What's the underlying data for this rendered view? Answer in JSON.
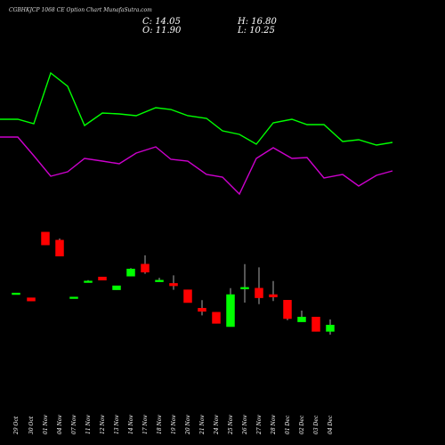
{
  "header": {
    "title": "CGBHKJCP 1068  CE Option  Chart MunafaSutra.com",
    "c_label": "C: 14.05",
    "h_label": "H: 16.80",
    "o_label": "O: 11.90",
    "l_label": "L: 10.25"
  },
  "colors": {
    "up": "#00ff00",
    "down": "#ff0000",
    "ma_fast": "#00ff00",
    "ma_slow": "#cc00cc",
    "background": "#000000"
  },
  "chart_data": {
    "type": "candlestick",
    "price_axis": {
      "note": "values estimated in chart price units",
      "min": 0,
      "max": 100
    },
    "candles": [
      {
        "date": "29 Oct",
        "open": 56.0,
        "high": 56.0,
        "low": 56.0,
        "close": 56.0
      },
      {
        "date": "30 Oct",
        "open": 53.0,
        "high": 53.0,
        "low": 51.0,
        "close": 51.0
      },
      {
        "date": "01 Nov",
        "open": 94.0,
        "high": 94.0,
        "low": 86.0,
        "close": 86.0
      },
      {
        "date": "04 Nov",
        "open": 89.0,
        "high": 90.0,
        "low": 79.0,
        "close": 79.0
      },
      {
        "date": "07 Nov",
        "open": 53.5,
        "high": 53.5,
        "low": 53.5,
        "close": 53.5
      },
      {
        "date": "11 Nov",
        "open": 63.5,
        "high": 64.0,
        "low": 63.5,
        "close": 63.5
      },
      {
        "date": "12 Nov",
        "open": 66.0,
        "high": 66.0,
        "low": 64.0,
        "close": 64.0
      },
      {
        "date": "13 Nov",
        "open": 58.0,
        "high": 60.5,
        "low": 58.0,
        "close": 60.5
      },
      {
        "date": "14 Nov",
        "open": 66.5,
        "high": 71.5,
        "low": 66.5,
        "close": 71.0
      },
      {
        "date": "17 Nov",
        "open": 74.0,
        "high": 79.5,
        "low": 68.0,
        "close": 69.0
      },
      {
        "date": "18 Nov",
        "open": 63.5,
        "high": 65.5,
        "low": 63.5,
        "close": 64.0
      },
      {
        "date": "19 Nov",
        "open": 62.0,
        "high": 67.0,
        "low": 58.0,
        "close": 60.5
      },
      {
        "date": "20 Nov",
        "open": 58.0,
        "high": 58.0,
        "low": 50.0,
        "close": 50.0
      },
      {
        "date": "21 Nov",
        "open": 46.5,
        "high": 51.5,
        "low": 42.0,
        "close": 44.5
      },
      {
        "date": "24 Nov",
        "open": 44.0,
        "high": 44.0,
        "low": 37.0,
        "close": 37.0
      },
      {
        "date": "25 Nov",
        "open": 35.0,
        "high": 59.0,
        "low": 35.0,
        "close": 55.0
      },
      {
        "date": "26 Nov",
        "open": 59.0,
        "high": 74.0,
        "low": 50.0,
        "close": 59.5
      },
      {
        "date": "27 Nov",
        "open": 59.0,
        "high": 72.0,
        "low": 49.0,
        "close": 53.0
      },
      {
        "date": "28 Nov",
        "open": 55.0,
        "high": 63.5,
        "low": 51.0,
        "close": 53.5
      },
      {
        "date": "01 Dec",
        "open": 51.5,
        "high": 51.5,
        "low": 39.0,
        "close": 40.0
      },
      {
        "date": "02 Dec",
        "open": 38.0,
        "high": 45.0,
        "low": 38.0,
        "close": 41.0
      },
      {
        "date": "03 Dec",
        "open": 41.0,
        "high": 41.0,
        "low": 32.0,
        "close": 32.0
      },
      {
        "date": "04 Dec",
        "open": 32.0,
        "high": 39.5,
        "low": 30.0,
        "close": 36.0
      }
    ],
    "ma_fast": [
      126,
      126,
      121,
      178,
      163,
      119,
      133,
      132,
      130,
      139,
      137,
      130,
      127,
      113,
      109,
      98,
      122,
      126,
      120,
      120,
      101,
      103,
      97,
      100
    ],
    "ma_slow": [
      106,
      106,
      85,
      62,
      67,
      82,
      79,
      76,
      88,
      95,
      81,
      79,
      64,
      61,
      42,
      82,
      94,
      82,
      83,
      60,
      64,
      51,
      63,
      68
    ],
    "ma_scale": {
      "min": 0,
      "max": 200
    }
  }
}
